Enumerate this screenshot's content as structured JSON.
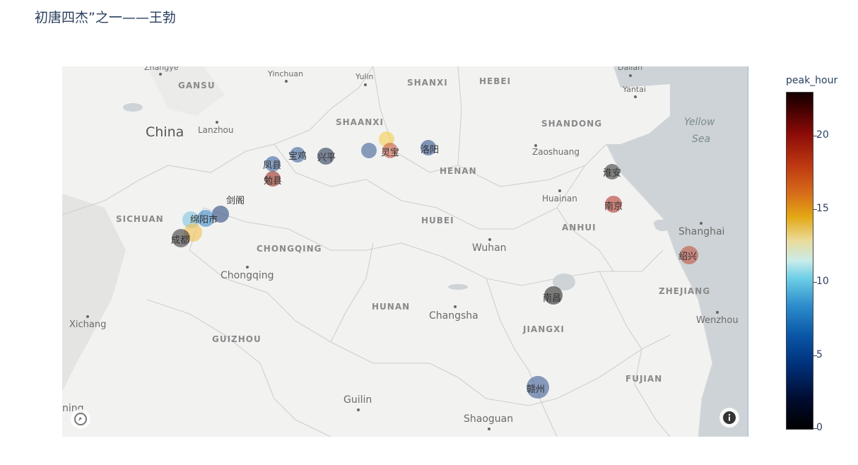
{
  "title": "初唐四杰”之一——王勃",
  "colorbar": {
    "title": "peak_hour",
    "ticks": [
      "0",
      "5",
      "10",
      "15",
      "20"
    ],
    "tick_values": [
      0,
      5,
      10,
      15,
      20
    ],
    "range": [
      0,
      23
    ]
  },
  "basemap": {
    "provinces": [
      "GANSU",
      "SHANXI",
      "HEBEI",
      "SHAANXI",
      "SHANDONG",
      "HENAN",
      "SICHUAN",
      "HUBEI",
      "ANHUI",
      "CHONGQING",
      "HUNAN",
      "ZHEJIANG",
      "JIANGXI",
      "GUIZHOU",
      "FUJIAN"
    ],
    "country": "China",
    "sea": [
      "Yellow",
      "Sea"
    ],
    "cities": [
      "Zhangye",
      "Yinchuan",
      "Yulin",
      "Dalian",
      "Yantai",
      "Lanzhou",
      "Zaoshuang",
      "Huainan",
      "Shanghai",
      "Wuhan",
      "Chongqing",
      "Xichang",
      "Changsha",
      "Wenzhou",
      "Guilin",
      "Shaoguan",
      "ning"
    ]
  },
  "places": [
    {
      "name": "宝鸡",
      "peak_hour": 4
    },
    {
      "name": "兴平",
      "peak_hour": 22
    },
    {
      "name": "凤县",
      "peak_hour": 5
    },
    {
      "name": "勉县",
      "peak_hour": 18
    },
    {
      "name": "灵宝",
      "peak_hour": 17
    },
    {
      "name": "洛阳",
      "peak_hour": 3
    },
    {
      "name": "淮安",
      "peak_hour": 22
    },
    {
      "name": "南京",
      "peak_hour": 18
    },
    {
      "name": "剑阁",
      "peak_hour": 3
    },
    {
      "name": "绵阳市",
      "peak_hour": 8
    },
    {
      "name": "成都",
      "peak_hour": 22
    },
    {
      "name": "绍兴",
      "peak_hour": 17
    },
    {
      "name": "南昌",
      "peak_hour": 22
    },
    {
      "name": "赣州",
      "peak_hour": 4
    }
  ],
  "icons": {
    "logo": "mapbox-logo-icon",
    "info": "info-icon"
  }
}
